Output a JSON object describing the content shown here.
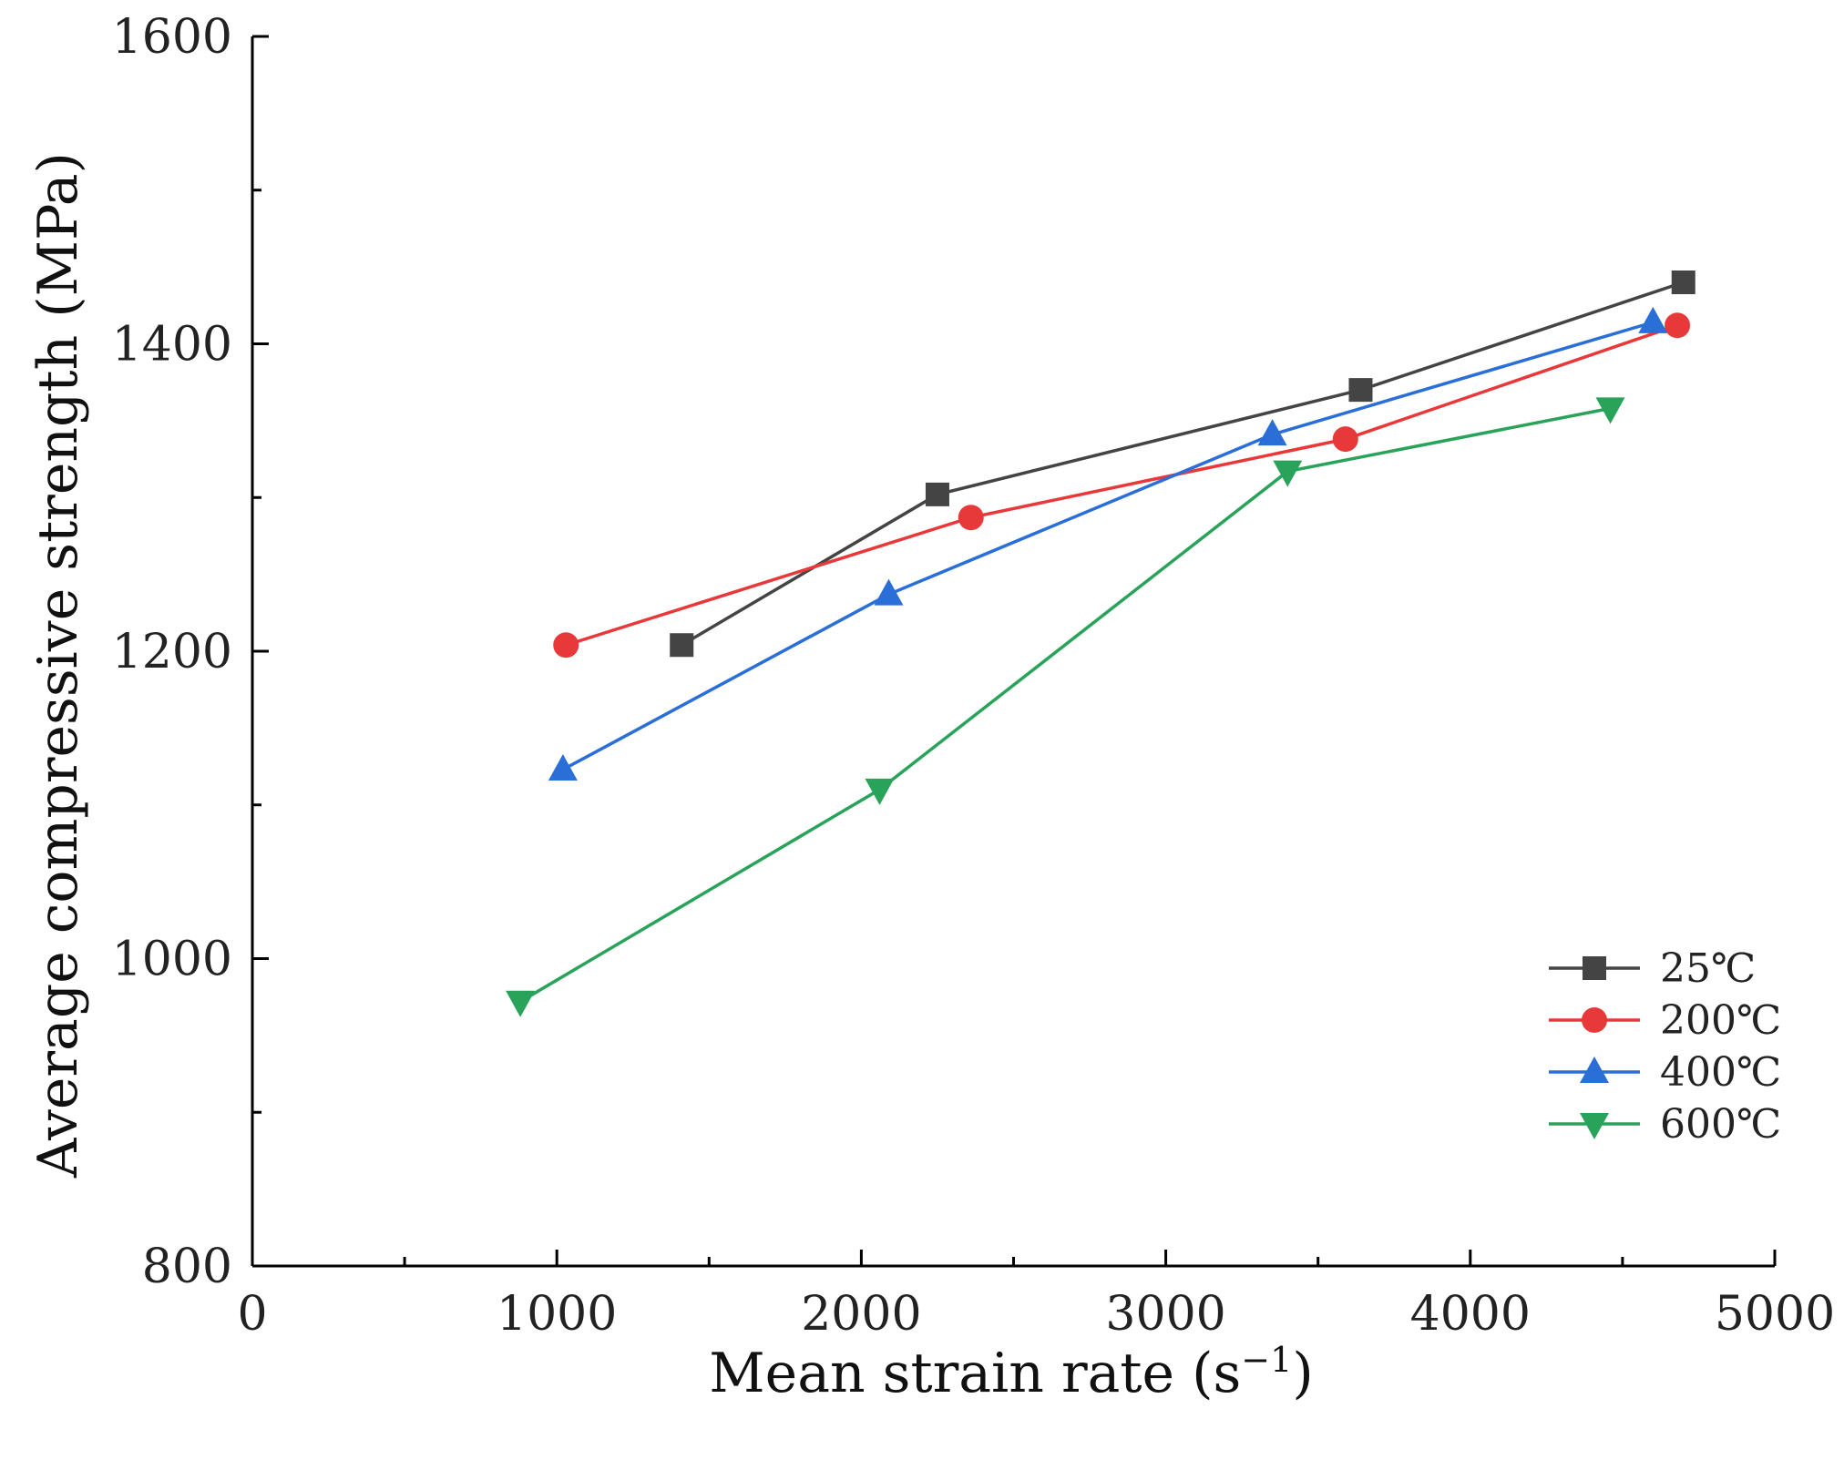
{
  "chart_data": {
    "type": "line",
    "title": "",
    "xlabel": "Mean strain rate (s",
    "xlabel_superscript": "−1",
    "xlabel_suffix": ")",
    "ylabel": "Average compressive strength (MPa)",
    "xlim": [
      0,
      5000
    ],
    "ylim": [
      800,
      1600
    ],
    "x_ticks": [
      0,
      1000,
      2000,
      3000,
      4000,
      5000
    ],
    "x_tick_labels": [
      "0",
      "1000",
      "2000",
      "3000",
      "4000",
      "5000"
    ],
    "x_minor_ticks": [
      500,
      1500,
      2500,
      3500,
      4500
    ],
    "y_ticks": [
      800,
      1000,
      1200,
      1400,
      1600
    ],
    "y_tick_labels": [
      "800",
      "1000",
      "1200",
      "1400",
      "1600"
    ],
    "y_minor_ticks": [
      900,
      1100,
      1300,
      1500
    ],
    "grid": false,
    "legend_position": "bottom-right",
    "series": [
      {
        "name": "25℃",
        "color": "#444444",
        "marker": "square",
        "x": [
          1410,
          2250,
          3640,
          4700
        ],
        "y": [
          1204,
          1302,
          1370,
          1440
        ]
      },
      {
        "name": "200℃",
        "color": "#e8393a",
        "marker": "circle",
        "x": [
          1030,
          2360,
          3590,
          4680
        ],
        "y": [
          1204,
          1287,
          1338,
          1412
        ]
      },
      {
        "name": "400℃",
        "color": "#2a6ed8",
        "marker": "triangle-up",
        "x": [
          1020,
          2090,
          3350,
          4600
        ],
        "y": [
          1123,
          1237,
          1341,
          1414
        ]
      },
      {
        "name": "600℃",
        "color": "#2aa35a",
        "marker": "triangle-down",
        "x": [
          880,
          2060,
          3400,
          4460
        ],
        "y": [
          972,
          1110,
          1317,
          1358
        ]
      }
    ]
  }
}
